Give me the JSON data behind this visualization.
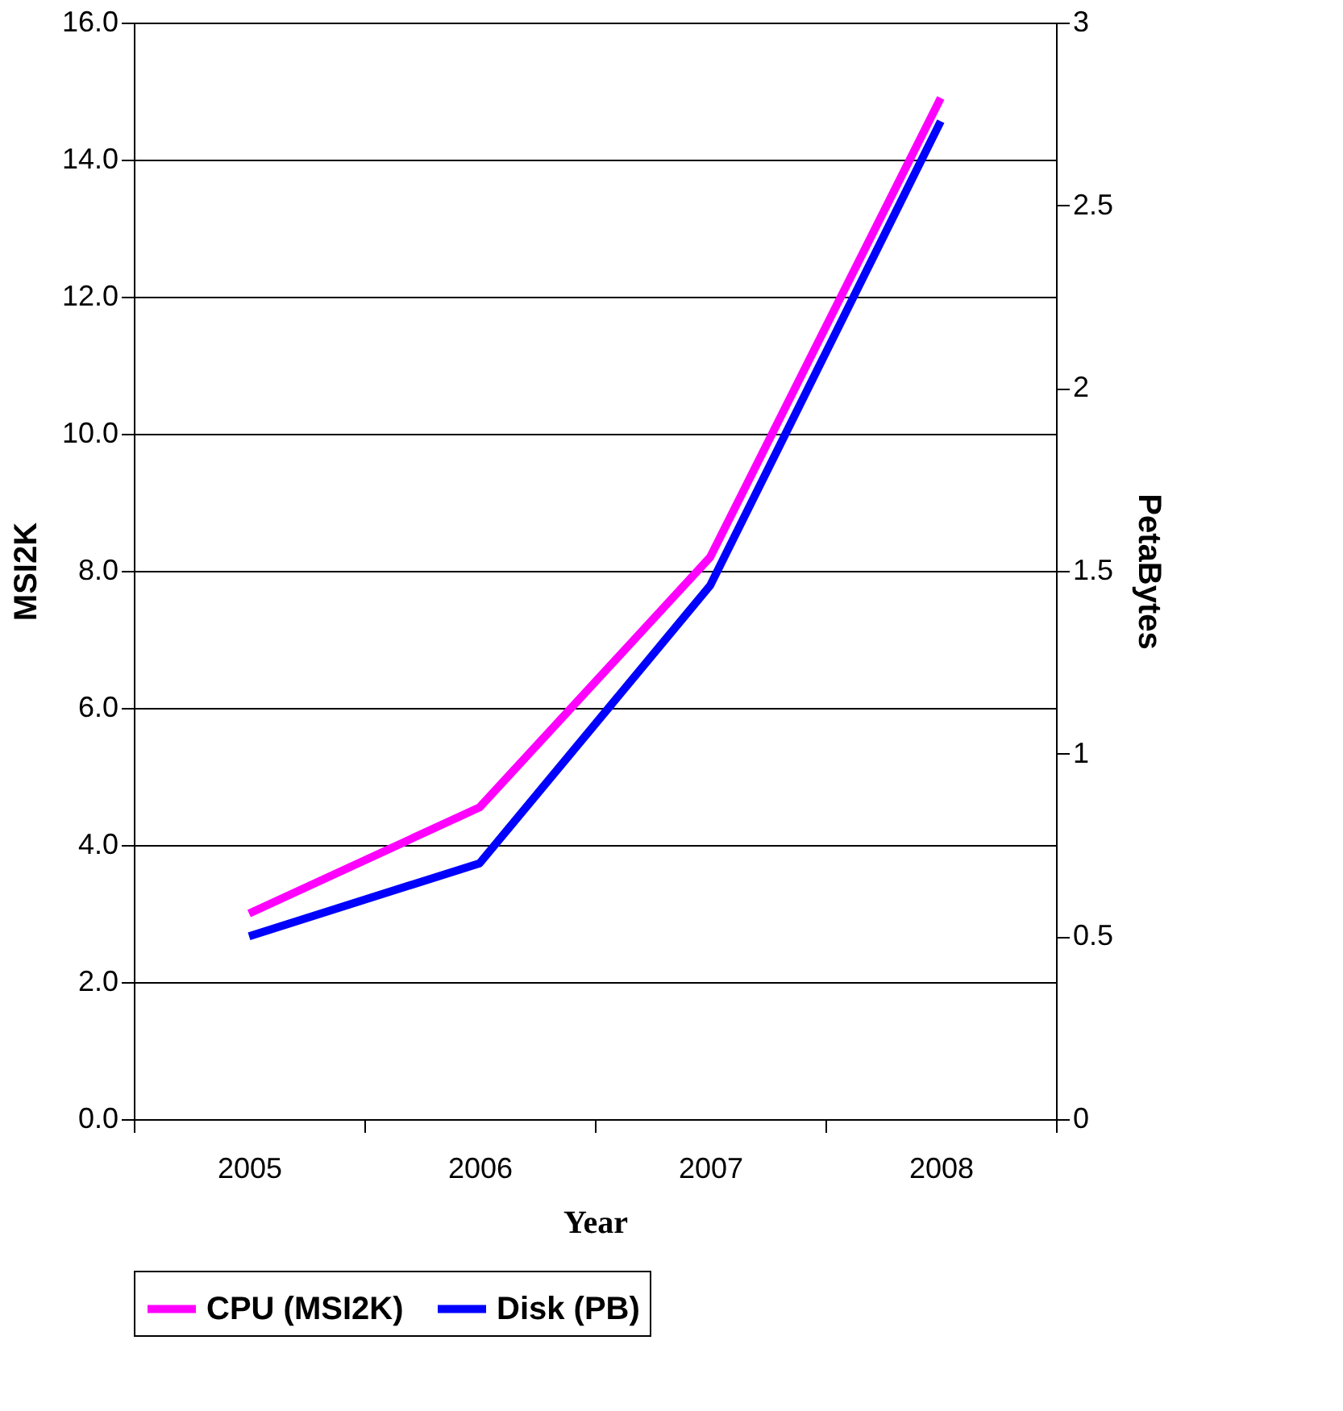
{
  "chart_data": {
    "type": "line",
    "xlabel": "Year",
    "ylabel": "MSI2K",
    "y2label": "PetaBytes",
    "categories": [
      "2005",
      "2006",
      "2007",
      "2008"
    ],
    "series": [
      {
        "name": "CPU (MSI2K)",
        "color": "#ff00ff",
        "values": [
          3.0,
          4.55,
          8.2,
          14.9
        ],
        "axis": "y"
      },
      {
        "name": "Disk (PB)",
        "color": "#0000ff",
        "values": [
          0.5,
          0.7,
          1.46,
          2.73
        ],
        "axis": "y2"
      }
    ],
    "ylim": [
      0,
      16
    ],
    "yticks": [
      {
        "value": 0,
        "label": "0.0"
      },
      {
        "value": 2,
        "label": "2.0"
      },
      {
        "value": 4,
        "label": "4.0"
      },
      {
        "value": 6,
        "label": "6.0"
      },
      {
        "value": 8,
        "label": "8.0"
      },
      {
        "value": 10,
        "label": "10.0"
      },
      {
        "value": 12,
        "label": "12.0"
      },
      {
        "value": 14,
        "label": "14.0"
      },
      {
        "value": 16,
        "label": "16.0"
      }
    ],
    "y2lim": [
      0,
      3
    ],
    "y2ticks": [
      0,
      0.5,
      1,
      1.5,
      2,
      2.5,
      3
    ],
    "grid": "y",
    "legend": "bottom",
    "line_style": "solid",
    "marker": "none"
  }
}
